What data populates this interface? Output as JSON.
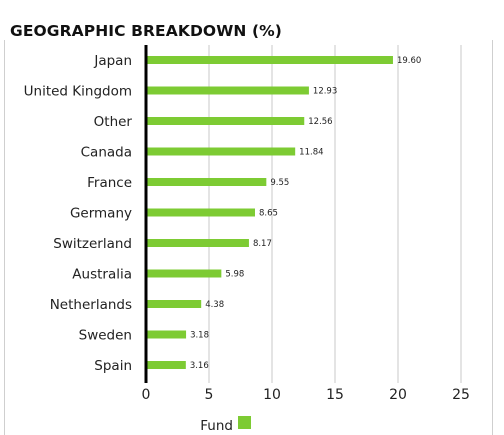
{
  "title": "GEOGRAPHIC BREAKDOWN (%)",
  "chart_data": {
    "type": "bar",
    "orientation": "horizontal",
    "title": "GEOGRAPHIC BREAKDOWN (%)",
    "categories": [
      "Japan",
      "United Kingdom",
      "Other",
      "Canada",
      "France",
      "Germany",
      "Switzerland",
      "Australia",
      "Netherlands",
      "Sweden",
      "Spain"
    ],
    "series": [
      {
        "name": "Fund",
        "values": [
          19.6,
          12.93,
          12.56,
          11.84,
          9.55,
          8.65,
          8.17,
          5.98,
          4.38,
          3.18,
          3.16
        ]
      }
    ],
    "value_labels": [
      "19.60",
      "12.93",
      "12.56",
      "11.84",
      "9.55",
      "8.65",
      "8.17",
      "5.98",
      "4.38",
      "3.18",
      "3.16"
    ],
    "xlim": [
      0,
      25
    ],
    "xticks": [
      0,
      5,
      10,
      15,
      20,
      25
    ],
    "grid": "vertical",
    "legend_position": "bottom",
    "colors": {
      "bar": "#7dcb33",
      "grid": "#c8c8c8",
      "axis": "#000000"
    }
  }
}
